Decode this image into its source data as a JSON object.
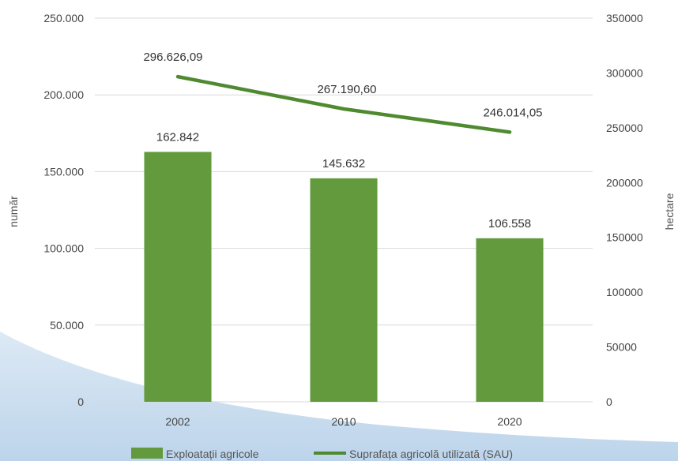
{
  "chart_data": {
    "type": "bar",
    "categories": [
      "2002",
      "2010",
      "2020"
    ],
    "series": [
      {
        "name": "Exploatații agricole",
        "type": "bar",
        "axis": "left",
        "values": [
          162842,
          145632,
          106558
        ],
        "labels": [
          "162.842",
          "145.632",
          "106.558"
        ]
      },
      {
        "name": "Suprafața agricolă utilizată (SAU)",
        "type": "line",
        "axis": "right",
        "values": [
          296626.09,
          267190.6,
          246014.05
        ],
        "labels": [
          "296.626,09",
          "267.190,60",
          "246.014,05"
        ]
      }
    ],
    "ylabel": "număr",
    "y2label": "hectare",
    "ylim": [
      0,
      250000
    ],
    "y2lim": [
      0,
      350000
    ],
    "yticks": [
      0,
      50000,
      100000,
      150000,
      200000,
      250000
    ],
    "ytick_labels": [
      "0",
      "50.000",
      "100.000",
      "150.000",
      "200.000",
      "250.000"
    ],
    "y2ticks": [
      0,
      50000,
      100000,
      150000,
      200000,
      250000,
      300000,
      350000
    ],
    "y2tick_labels": [
      "0",
      "50000",
      "100000",
      "150000",
      "200000",
      "250000",
      "300000",
      "350000"
    ],
    "grid": true,
    "legend": "bottom",
    "colors": {
      "bar": "#629a3d",
      "line": "#4f8a31",
      "grid": "#d9d9d9",
      "decor": "#c8dced"
    }
  }
}
